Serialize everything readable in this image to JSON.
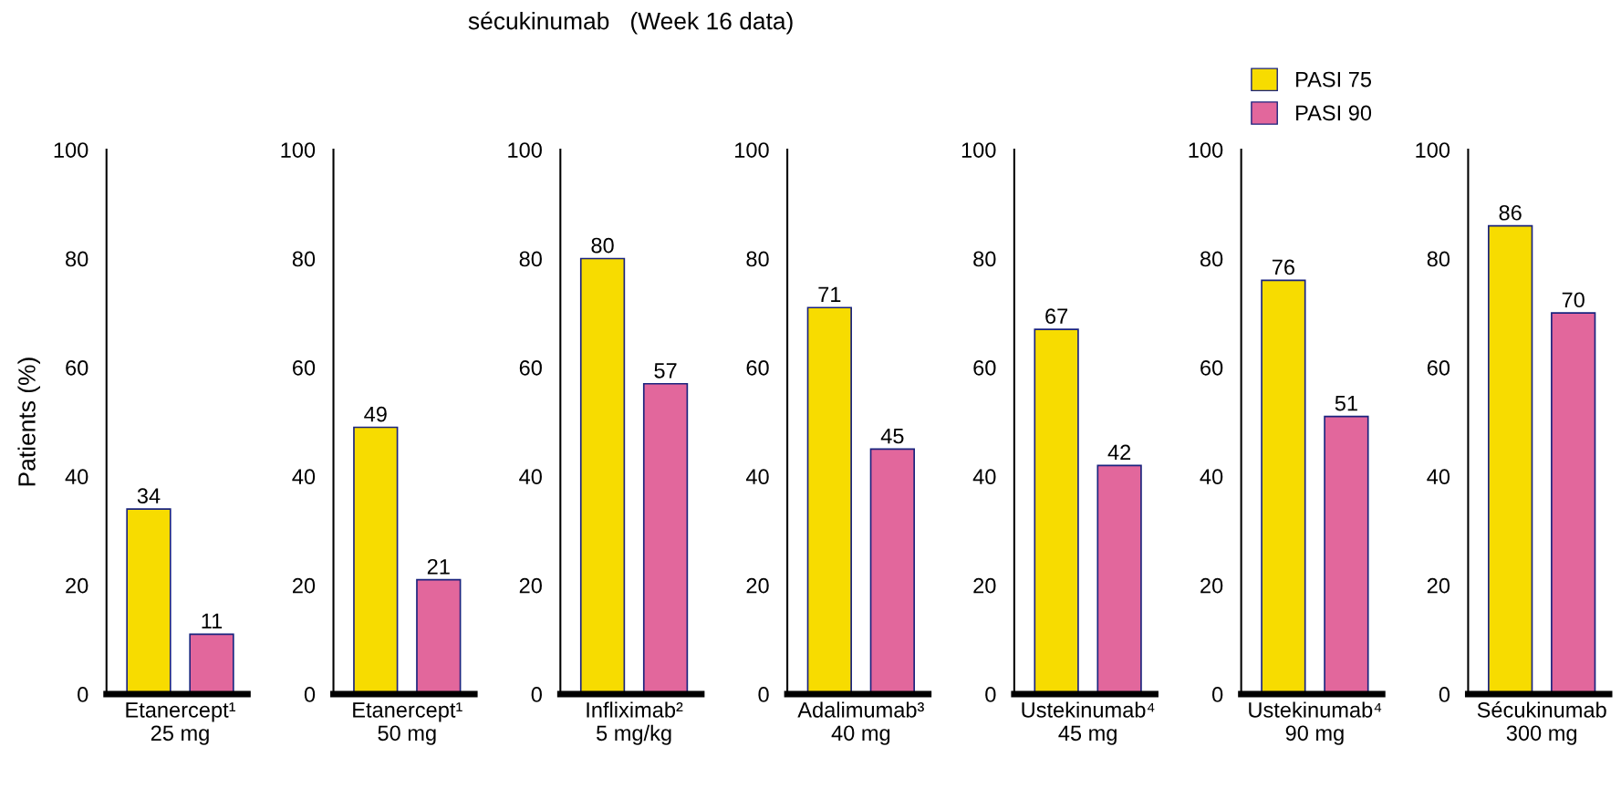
{
  "chart_data": [
    {
      "type": "bar",
      "ylabel": "Patients (%)",
      "categories": [
        "Etanercept¹\n25 mg"
      ],
      "ylim": [
        0,
        100
      ],
      "yticks": [
        0,
        20,
        40,
        60,
        80,
        100
      ],
      "data_labels": true,
      "grid": false,
      "legend": false,
      "series": [
        {
          "color": "#f7dc00",
          "values": [
            34
          ]
        },
        {
          "color": "#e2679c",
          "values": [
            11
          ]
        }
      ]
    },
    {
      "type": "bar",
      "categories": [
        "Etanercept¹\n50 mg"
      ],
      "ylim": [
        0,
        100
      ],
      "yticks": [
        0,
        20,
        40,
        60,
        80,
        100
      ],
      "data_labels": true,
      "grid": false,
      "legend": false,
      "series": [
        {
          "color": "#f7dc00",
          "values": [
            49
          ]
        },
        {
          "color": "#e2679c",
          "values": [
            21
          ]
        }
      ]
    },
    {
      "type": "bar",
      "title": "sécukinumab   (Week 16 data)",
      "categories": [
        "Infliximab²\n5 mg/kg"
      ],
      "ylim": [
        0,
        100
      ],
      "yticks": [
        0,
        20,
        40,
        60,
        80,
        100
      ],
      "data_labels": true,
      "grid": false,
      "legend": false,
      "series": [
        {
          "color": "#f7dc00",
          "values": [
            80
          ]
        },
        {
          "color": "#e2679c",
          "values": [
            57
          ]
        }
      ]
    },
    {
      "type": "bar",
      "categories": [
        "Adalimumab³\n40 mg"
      ],
      "ylim": [
        0,
        100
      ],
      "yticks": [
        0,
        20,
        40,
        60,
        80,
        100
      ],
      "data_labels": true,
      "grid": false,
      "legend": false,
      "series": [
        {
          "color": "#f7dc00",
          "values": [
            71
          ]
        },
        {
          "color": "#e2679c",
          "values": [
            45
          ]
        }
      ]
    },
    {
      "type": "bar",
      "categories": [
        "Ustekinumab⁴\n45 mg"
      ],
      "ylim": [
        0,
        100
      ],
      "yticks": [
        0,
        20,
        40,
        60,
        80,
        100
      ],
      "data_labels": true,
      "grid": false,
      "legend": false,
      "series": [
        {
          "color": "#f7dc00",
          "values": [
            67
          ]
        },
        {
          "color": "#e2679c",
          "values": [
            42
          ]
        }
      ]
    },
    {
      "type": "bar",
      "categories": [
        "Ustekinumab⁴\n90 mg"
      ],
      "ylim": [
        0,
        100
      ],
      "yticks": [
        0,
        20,
        40,
        60,
        80,
        100
      ],
      "data_labels": true,
      "grid": false,
      "legend": "top",
      "series": [
        {
          "name": "PASI 75",
          "color": "#f7dc00",
          "values": [
            76
          ]
        },
        {
          "name": "PASI 90",
          "color": "#e2679c",
          "values": [
            51
          ]
        }
      ]
    },
    {
      "type": "bar",
      "categories": [
        "Sécukinumab\n300 mg"
      ],
      "ylim": [
        0,
        100
      ],
      "yticks": [
        0,
        20,
        40,
        60,
        80,
        100
      ],
      "data_labels": true,
      "grid": false,
      "legend": false,
      "series": [
        {
          "color": "#f7dc00",
          "values": [
            86
          ]
        },
        {
          "color": "#e2679c",
          "values": [
            70
          ]
        }
      ]
    }
  ]
}
